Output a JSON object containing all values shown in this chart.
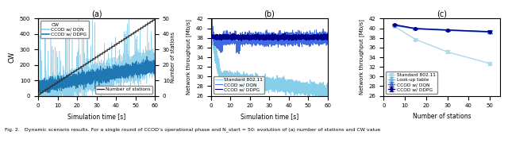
{
  "panel_a": {
    "title": "(a)",
    "xlabel": "Simulation time [s]",
    "ylabel_left": "CW",
    "ylabel_right": "Number of stations",
    "xlim": [
      0,
      60
    ],
    "ylim_left": [
      0,
      500
    ],
    "ylim_right": [
      0,
      50
    ],
    "colors": {
      "dqn": "#87CEEB",
      "ddpg": "#1f77b4",
      "stations": "#333333"
    }
  },
  "panel_b": {
    "title": "(b)",
    "xlabel": "Simulation time [s]",
    "ylabel": "Network throughput [Mb/s]",
    "xlim": [
      0,
      60
    ],
    "ylim": [
      26,
      42
    ],
    "yticks": [
      26,
      28,
      30,
      32,
      34,
      36,
      38,
      40,
      42
    ],
    "colors": {
      "standard": "#87CEEB",
      "dqn": "#4169E1",
      "ddpg": "#00008B"
    }
  },
  "panel_c": {
    "title": "(c)",
    "xlabel": "Number of stations",
    "ylabel": "Network throughput [Mb/s]",
    "xlim": [
      0,
      55
    ],
    "ylim": [
      26,
      42
    ],
    "yticks": [
      26,
      28,
      30,
      32,
      34,
      36,
      38,
      40,
      42
    ],
    "x_ticks": [
      0,
      10,
      20,
      30,
      40,
      50
    ],
    "stations": [
      5,
      15,
      30,
      50
    ],
    "standard": [
      40.4,
      37.7,
      35.1,
      32.7
    ],
    "standard_err": [
      0.3,
      0.3,
      0.3,
      0.3
    ],
    "lookup": [
      40.55,
      39.85,
      39.55,
      39.15
    ],
    "lookup_err": [
      0.15,
      0.15,
      0.15,
      0.2
    ],
    "dqn": [
      40.65,
      39.9,
      39.6,
      39.25
    ],
    "dqn_err": [
      0.15,
      0.15,
      0.15,
      0.2
    ],
    "ddpg": [
      40.75,
      39.95,
      39.65,
      39.3
    ],
    "ddpg_err": [
      0.15,
      0.15,
      0.15,
      0.35
    ],
    "colors": {
      "standard": "#ADD8E6",
      "lookup": "#6EB5E8",
      "dqn": "#4169E1",
      "ddpg": "#00008B"
    }
  },
  "caption": "Fig. 2.   Dynamic scenario results. For a single round of CCOD’s operational phase and N_start = 50: evolution of (a) number of stations and CW value"
}
